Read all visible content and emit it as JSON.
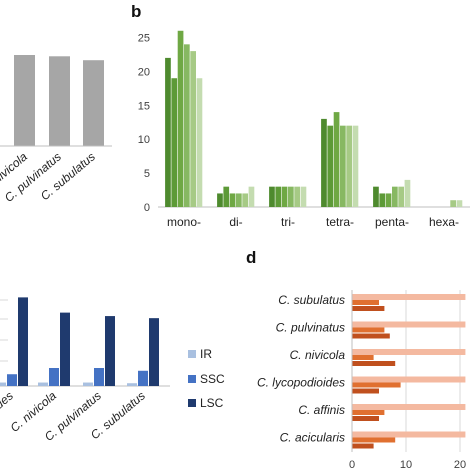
{
  "panels": {
    "b": "b",
    "d": "d"
  },
  "chart_data": [
    {
      "id": "a",
      "type": "bar",
      "categories": [
        "C. nivicola",
        "C. pulvinatus",
        "C. subulatus"
      ],
      "values": [
        0.7,
        0.69,
        0.66
      ],
      "color": "#a6a6a6",
      "note": "partially visible panel; y axis not shown"
    },
    {
      "id": "b",
      "type": "bar",
      "title": "",
      "categories": [
        "mono-",
        "di-",
        "tri-",
        "tetra-",
        "penta-",
        "hexa-"
      ],
      "ylim": [
        0,
        27
      ],
      "yticks": [
        0,
        5,
        10,
        15,
        20,
        25
      ],
      "series": [
        {
          "color": "#4e8a2e",
          "values": [
            22,
            2,
            3,
            13,
            3,
            0
          ]
        },
        {
          "color": "#5d9a37",
          "values": [
            19,
            3,
            3,
            12,
            2,
            0
          ]
        },
        {
          "color": "#6fa844",
          "values": [
            26,
            2,
            3,
            14,
            2,
            0
          ]
        },
        {
          "color": "#87b862",
          "values": [
            24,
            2,
            3,
            12,
            3,
            0
          ]
        },
        {
          "color": "#a6ca85",
          "values": [
            23,
            2,
            3,
            12,
            3,
            1
          ]
        },
        {
          "color": "#c4dcb0",
          "values": [
            19,
            3,
            3,
            12,
            4,
            1
          ]
        }
      ],
      "grid": false
    },
    {
      "id": "c",
      "type": "bar",
      "categories": [
        "...ues",
        "C. nivicola",
        "C. pulvinatus",
        "C. subulatus"
      ],
      "series": [
        {
          "name": "IR",
          "color": "#a9c0e0",
          "values": [
            0.5,
            0.5,
            0.5,
            0.4
          ]
        },
        {
          "name": "SSC",
          "color": "#4472c4",
          "values": [
            1.7,
            2.6,
            2.6,
            2.2
          ]
        },
        {
          "name": "LSC",
          "color": "#1f3a6e",
          "values": [
            12.8,
            10.6,
            10.1,
            9.8
          ]
        }
      ],
      "legend": "right",
      "ylim": [
        0,
        13
      ]
    },
    {
      "id": "d",
      "type": "bar",
      "orientation": "horizontal",
      "categories": [
        "C. subulatus",
        "C. pulvinatus",
        "C. nivicola",
        "C. lycopodioides",
        "C. affinis",
        "C. acicularis"
      ],
      "xticks": [
        0,
        10,
        20
      ],
      "xlim": [
        0,
        21
      ],
      "series": [
        {
          "color": "#f4b9a0",
          "values": [
            21,
            21,
            21,
            21,
            21,
            21
          ]
        },
        {
          "color": "#e07030",
          "values": [
            5,
            6,
            4,
            9,
            6,
            8
          ]
        },
        {
          "color": "#c0501e",
          "values": [
            6,
            7,
            8,
            5,
            5,
            4
          ]
        }
      ]
    }
  ]
}
